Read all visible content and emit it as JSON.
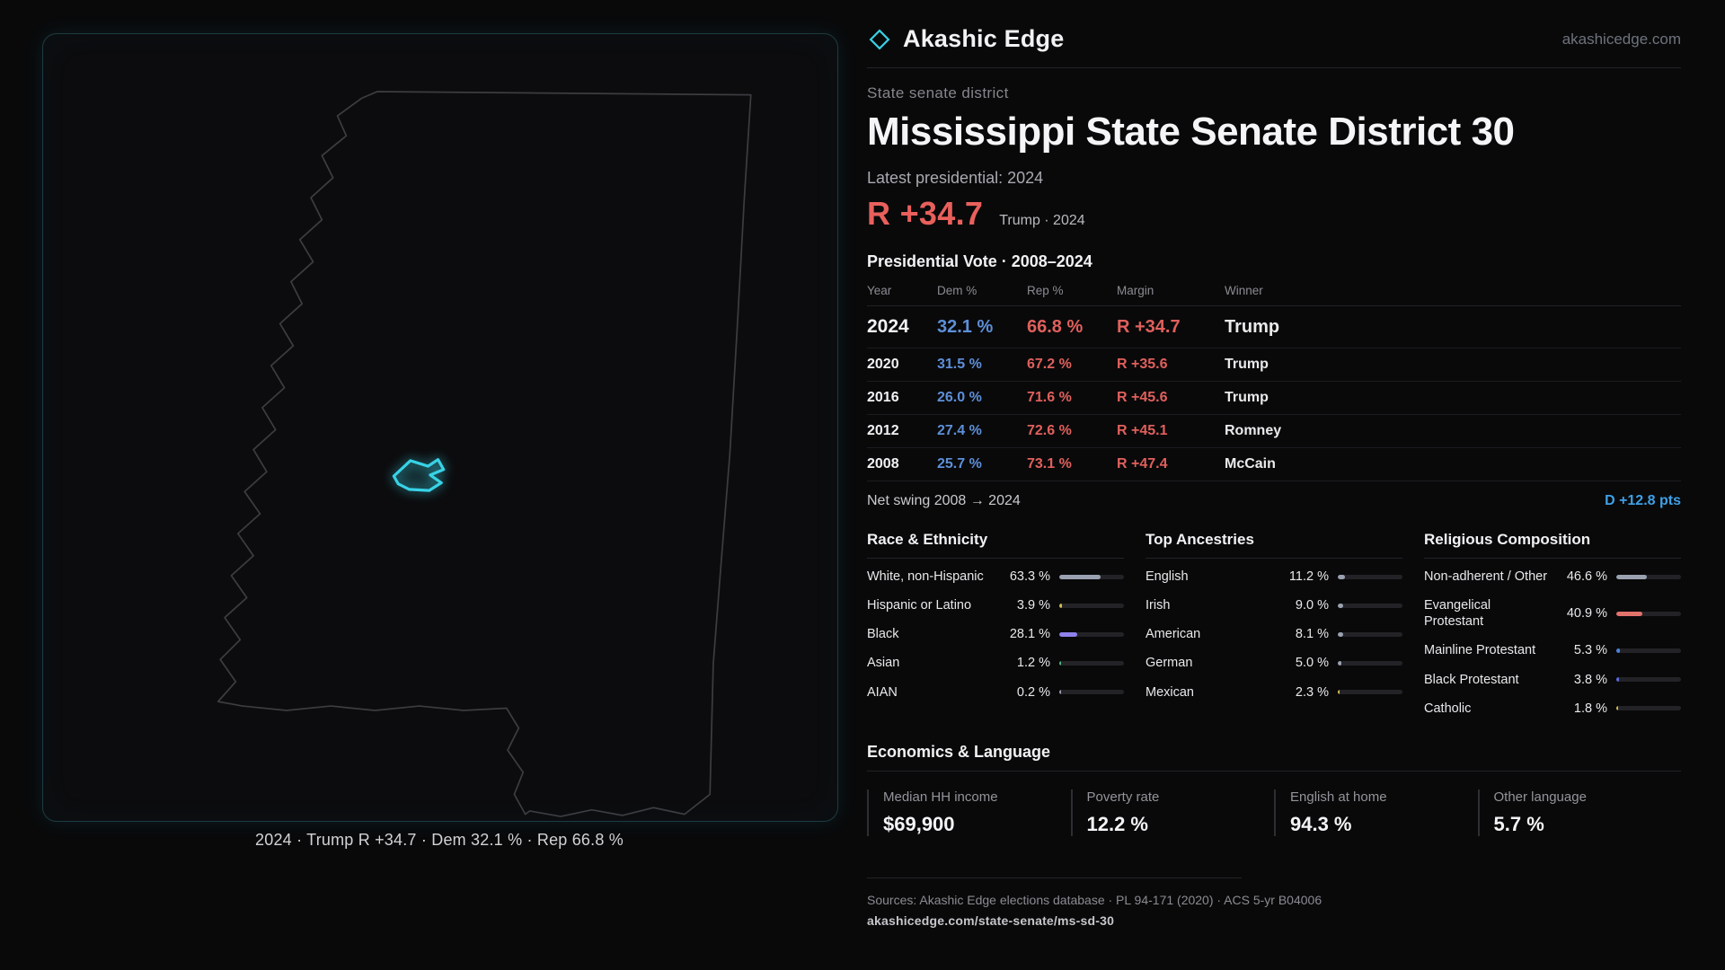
{
  "header": {
    "brand": "Akashic Edge",
    "site": "akashicedge.com",
    "kicker": "State senate district",
    "title": "Mississippi State Senate District 30"
  },
  "summary": {
    "latest_label": "Latest presidential: 2024",
    "margin": "R +34.7",
    "margin_sub": "Trump · 2024"
  },
  "map": {
    "caption": "2024 · Trump R +34.7 · Dem 32.1 % · Rep 66.8 %",
    "district_color": "#38d2e6",
    "outline_color": "#3c3c41"
  },
  "vote_table": {
    "title": "Presidential Vote · 2008–2024",
    "columns": [
      "Year",
      "Dem %",
      "Rep %",
      "Margin",
      "Winner"
    ],
    "rows": [
      {
        "year": "2024",
        "dem": "32.1 %",
        "rep": "66.8 %",
        "margin": "R +34.7",
        "winner": "Trump"
      },
      {
        "year": "2020",
        "dem": "31.5 %",
        "rep": "67.2 %",
        "margin": "R +35.6",
        "winner": "Trump"
      },
      {
        "year": "2016",
        "dem": "26.0 %",
        "rep": "71.6 %",
        "margin": "R +45.6",
        "winner": "Trump"
      },
      {
        "year": "2012",
        "dem": "27.4 %",
        "rep": "72.6 %",
        "margin": "R +45.1",
        "winner": "Romney"
      },
      {
        "year": "2008",
        "dem": "25.7 %",
        "rep": "73.1 %",
        "margin": "R +47.4",
        "winner": "McCain"
      }
    ]
  },
  "swing": {
    "label": "Net swing 2008 → 2024",
    "value": "D +12.8 pts"
  },
  "demographics": {
    "race": {
      "title": "Race & Ethnicity",
      "rows": [
        {
          "label": "White, non-Hispanic",
          "value": "63.3 %",
          "pct": 63.3,
          "color": "#9aa1b0"
        },
        {
          "label": "Hispanic or Latino",
          "value": "3.9 %",
          "pct": 3.9,
          "color": "#d4bd4e"
        },
        {
          "label": "Black",
          "value": "28.1 %",
          "pct": 28.1,
          "color": "#8f82ea"
        },
        {
          "label": "Asian",
          "value": "1.2 %",
          "pct": 1.2,
          "color": "#52b383"
        },
        {
          "label": "AIAN",
          "value": "0.2 %",
          "pct": 0.2,
          "color": "#9aa1b0"
        }
      ]
    },
    "ancestry": {
      "title": "Top Ancestries",
      "rows": [
        {
          "label": "English",
          "value": "11.2 %",
          "pct": 11.2,
          "color": "#9aa1b0"
        },
        {
          "label": "Irish",
          "value": "9.0 %",
          "pct": 9.0,
          "color": "#9aa1b0"
        },
        {
          "label": "American",
          "value": "8.1 %",
          "pct": 8.1,
          "color": "#9aa1b0"
        },
        {
          "label": "German",
          "value": "5.0 %",
          "pct": 5.0,
          "color": "#9aa1b0"
        },
        {
          "label": "Mexican",
          "value": "2.3 %",
          "pct": 2.3,
          "color": "#d4bd4e"
        }
      ]
    },
    "religion": {
      "title": "Religious Composition",
      "rows": [
        {
          "label": "Non-adherent / Other",
          "value": "46.6 %",
          "pct": 46.6,
          "color": "#9aa1b0"
        },
        {
          "label": "Evangelical Protestant",
          "value": "40.9 %",
          "pct": 40.9,
          "color": "#e2726c"
        },
        {
          "label": "Mainline Protestant",
          "value": "5.3 %",
          "pct": 5.3,
          "color": "#4d82d8"
        },
        {
          "label": "Black Protestant",
          "value": "3.8 %",
          "pct": 3.8,
          "color": "#5a6ae0"
        },
        {
          "label": "Catholic",
          "value": "1.8 %",
          "pct": 1.8,
          "color": "#d4bd4e"
        }
      ]
    }
  },
  "economics": {
    "title": "Economics & Language",
    "stats": [
      {
        "label": "Median HH income",
        "value": "$69,900"
      },
      {
        "label": "Poverty rate",
        "value": "12.2 %"
      },
      {
        "label": "English at home",
        "value": "94.3 %"
      },
      {
        "label": "Other language",
        "value": "5.7 %"
      }
    ]
  },
  "footer": {
    "sources": "Sources: Akashic Edge elections database · PL 94-171 (2020) · ACS 5-yr B04006",
    "permalink": "akashicedge.com/state-senate/ms-sd-30"
  }
}
